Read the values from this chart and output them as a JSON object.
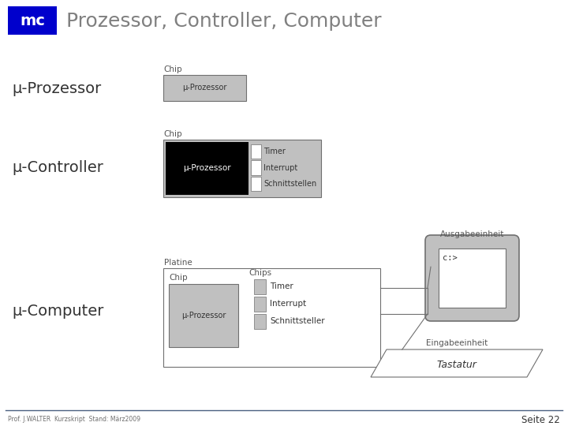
{
  "title": "Prozessor, Controller, Computer",
  "mc_label": "mc",
  "mc_bg": "#0000cc",
  "mc_fg": "#ffffff",
  "background": "#ffffff",
  "footer_left": "Prof. J.WALTER  Kurzskript  Stand: März2009",
  "footer_right": "Seite 22",
  "footer_line_color": "#4a6080",
  "title_color": "#808080",
  "label_color": "#333333",
  "small_label_color": "#555555",
  "mu_prozessor_label": "μ-Prozessor",
  "mu_controller_label": "μ-Controller",
  "mu_computer_label": "μ-Computer",
  "chip_label": "Chip",
  "chips_label": "Chips",
  "platine_label": "Platine",
  "mu_prozessor_chip_label": "μ-Prozessor",
  "timer_label": "Timer",
  "interrupt_label": "Interrupt",
  "schnittstellen_label": "Schnittstellen",
  "schnittsteller_label": "Schnittsteller",
  "ausgabeeinheit_label": "Ausgabeeinheit",
  "eingabeeinheit_label": "Eingabeeinheit",
  "tastatur_label": "Tastatur",
  "c_label": "c:>",
  "light_gray": "#c0c0c0",
  "mid_gray": "#b0b0b0",
  "dark_gray": "#707070",
  "black": "#000000",
  "white": "#ffffff"
}
